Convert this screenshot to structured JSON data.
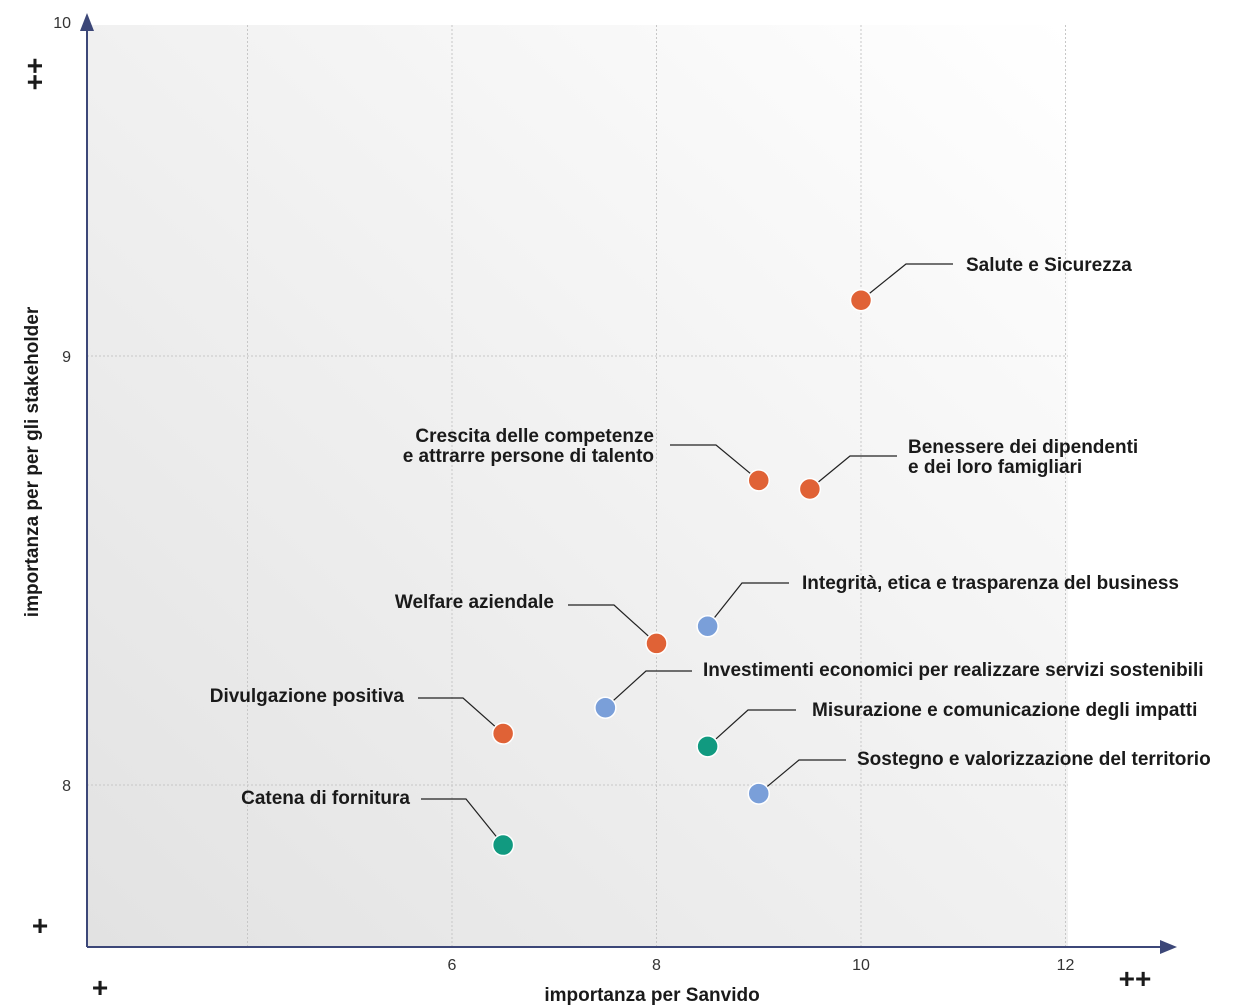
{
  "chart_data": {
    "type": "scatter",
    "xlabel": "importanza per Sanvido",
    "ylabel": "importanza per per gli stakeholder",
    "xlim": [
      4.4,
      12.0
    ],
    "ylim": [
      7.62,
      10.0
    ],
    "x_ticks": [
      "6",
      "8",
      "10",
      "12"
    ],
    "y_ticks": [
      "8",
      "9",
      "10"
    ],
    "grid": true,
    "x_low_marker": "+",
    "x_high_marker": "++",
    "y_low_marker": "+",
    "y_high_marker": "++",
    "colors": {
      "orange": "#e06236",
      "blue": "#7a9fd9",
      "green": "#119a80"
    },
    "points": [
      {
        "lines": [
          "Salute e Sicurezza"
        ],
        "x": 10.0,
        "y": 9.13,
        "color": "orange"
      },
      {
        "lines": [
          "Crescita delle competenze",
          "e attrarre persone di talento"
        ],
        "x": 9.0,
        "y": 8.71,
        "color": "orange"
      },
      {
        "lines": [
          "Benessere dei dipendenti",
          "e dei loro famigliari"
        ],
        "x": 9.5,
        "y": 8.69,
        "color": "orange"
      },
      {
        "lines": [
          "Welfare aziendale"
        ],
        "x": 8.0,
        "y": 8.33,
        "color": "orange"
      },
      {
        "lines": [
          "Integrità, etica e trasparenza del business"
        ],
        "x": 8.5,
        "y": 8.37,
        "color": "blue"
      },
      {
        "lines": [
          "Investimenti  economici per realizzare servizi sostenibili"
        ],
        "x": 7.5,
        "y": 8.18,
        "color": "blue"
      },
      {
        "lines": [
          "Divulgazione positiva"
        ],
        "x": 6.5,
        "y": 8.12,
        "color": "orange"
      },
      {
        "lines": [
          "Misurazione e comunicazione degli impatti"
        ],
        "x": 8.5,
        "y": 8.09,
        "color": "green"
      },
      {
        "lines": [
          "Sostegno e valorizzazione del territorio"
        ],
        "x": 9.0,
        "y": 7.98,
        "color": "blue"
      },
      {
        "lines": [
          "Catena di fornitura"
        ],
        "x": 6.5,
        "y": 7.86,
        "color": "green"
      }
    ]
  }
}
